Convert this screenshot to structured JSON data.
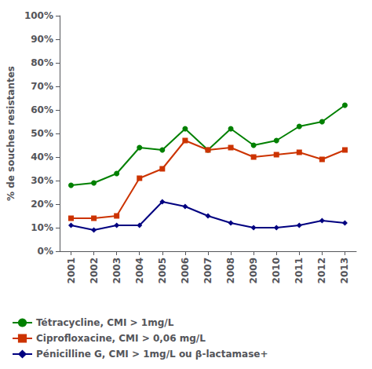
{
  "chart_data": {
    "type": "line",
    "x": [
      2001,
      2002,
      2003,
      2004,
      2005,
      2006,
      2007,
      2008,
      2009,
      2010,
      2011,
      2012,
      2013
    ],
    "xlim": [
      2000.5,
      2013.5
    ],
    "xticks": [
      2001,
      2002,
      2003,
      2004,
      2005,
      2006,
      2007,
      2008,
      2009,
      2010,
      2011,
      2012,
      2013
    ],
    "ylabel": "% de souches resistantes",
    "ylim": [
      0,
      100
    ],
    "yticks": [
      {
        "value": 0,
        "label": "0%"
      },
      {
        "value": 10,
        "label": "10%"
      },
      {
        "value": 20,
        "label": "20%"
      },
      {
        "value": 30,
        "label": "30%"
      },
      {
        "value": 40,
        "label": "40%"
      },
      {
        "value": 50,
        "label": "50%"
      },
      {
        "value": 60,
        "label": "60%"
      },
      {
        "value": 70,
        "label": "70%"
      },
      {
        "value": 80,
        "label": "80%"
      },
      {
        "value": 90,
        "label": "90%"
      },
      {
        "value": 100,
        "label": "100%"
      }
    ],
    "grid": false,
    "legend": "lower left",
    "series": [
      {
        "name": "Tétracycline, CMI > 1mg/L",
        "color": "#008000",
        "marker": "circle",
        "values": [
          28,
          29,
          33,
          44,
          43,
          52,
          43,
          52,
          45,
          47,
          53,
          55,
          62
        ]
      },
      {
        "name": "Ciprofloxacine, CMI > 0,06 mg/L",
        "color": "#cc3300",
        "marker": "square",
        "values": [
          14,
          14,
          15,
          31,
          35,
          47,
          43,
          44,
          40,
          41,
          42,
          39,
          43
        ]
      },
      {
        "name": "Pénicilline G, CMI > 1mg/L ou β-lactamase+",
        "color": "#000080",
        "marker": "diamond",
        "values": [
          11,
          9,
          11,
          11,
          21,
          19,
          15,
          12,
          10,
          10,
          11,
          13,
          12
        ]
      }
    ]
  }
}
